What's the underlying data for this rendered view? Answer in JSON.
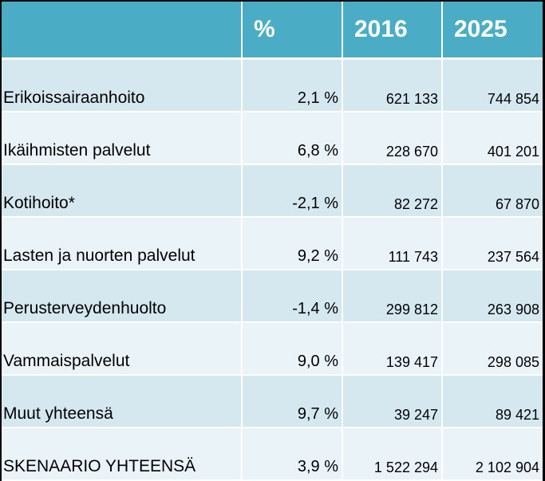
{
  "header": {
    "col_label": "",
    "col_pct": "%",
    "col_2016": "2016",
    "col_2025": "2025"
  },
  "rows": [
    {
      "label": "Erikoissairaanhoito",
      "pct": "2,1 %",
      "y2016": "621 133",
      "y2025": "744 854"
    },
    {
      "label": "Ikäihmisten palvelut",
      "pct": "6,8 %",
      "y2016": "228 670",
      "y2025": "401 201"
    },
    {
      "label": "Kotihoito*",
      "pct": "-2,1 %",
      "y2016": "82 272",
      "y2025": "67 870"
    },
    {
      "label": "Lasten ja nuorten palvelut",
      "pct": "9,2 %",
      "y2016": "111 743",
      "y2025": "237 564"
    },
    {
      "label": "Perusterveydenhuolto",
      "pct": "-1,4 %",
      "y2016": "299 812",
      "y2025": "263 908"
    },
    {
      "label": "Vammaispalvelut",
      "pct": "9,0 %",
      "y2016": "139 417",
      "y2025": "298 085"
    },
    {
      "label": "Muut yhteensä",
      "pct": "9,7 %",
      "y2016": "39 247",
      "y2025": "89 421"
    },
    {
      "label": "SKENAARIO YHTEENSÄ",
      "pct": "3,9 %",
      "y2016": "1 522 294",
      "y2025": "2 102 904"
    }
  ],
  "colors": {
    "header": "#4bacc6",
    "row_odd": "#d5e8f0",
    "row_even": "#eaf4f8",
    "background": "#000000"
  }
}
